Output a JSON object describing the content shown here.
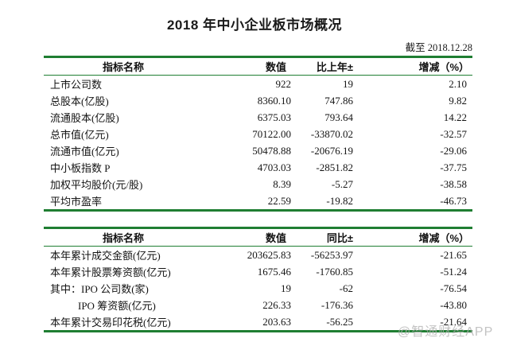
{
  "title": "2018 年中小企业板市场概况",
  "as_of": "截至 2018.12.28",
  "watermark": "@智通财经APP",
  "colors": {
    "border_green": "#1f7e32",
    "text": "#141414",
    "watermark": "#afafaf"
  },
  "table1": {
    "headers": [
      "指标名称",
      "数值",
      "比上年±",
      "增减（%）"
    ],
    "rows": [
      {
        "label": "上市公司数",
        "value": "922",
        "delta": "19",
        "pct": "2.10",
        "indent": false
      },
      {
        "label": "总股本(亿股)",
        "value": "8360.10",
        "delta": "747.86",
        "pct": "9.82",
        "indent": false
      },
      {
        "label": "流通股本(亿股)",
        "value": "6375.03",
        "delta": "793.64",
        "pct": "14.22",
        "indent": false
      },
      {
        "label": "总市值(亿元)",
        "value": "70122.00",
        "delta": "-33870.02",
        "pct": "-32.57",
        "indent": false
      },
      {
        "label": "流通市值(亿元)",
        "value": "50478.88",
        "delta": "-20676.19",
        "pct": "-29.06",
        "indent": false
      },
      {
        "label": "中小板指数 P",
        "value": "4703.03",
        "delta": "-2851.82",
        "pct": "-37.75",
        "indent": false
      },
      {
        "label": "加权平均股价(元/股)",
        "value": "8.39",
        "delta": "-5.27",
        "pct": "-38.58",
        "indent": false
      },
      {
        "label": "平均市盈率",
        "value": "22.59",
        "delta": "-19.82",
        "pct": "-46.73",
        "indent": false
      }
    ]
  },
  "table2": {
    "headers": [
      "指标名称",
      "数值",
      "同比±",
      "增减（%）"
    ],
    "rows": [
      {
        "label": "本年累计成交金额(亿元)",
        "value": "203625.83",
        "delta": "-56253.97",
        "pct": "-21.65",
        "indent": false
      },
      {
        "label": "本年累计股票筹资额(亿元)",
        "value": "1675.46",
        "delta": "-1760.85",
        "pct": "-51.24",
        "indent": false
      },
      {
        "label": "其中：IPO 公司数(家)",
        "value": "19",
        "delta": "-62",
        "pct": "-76.54",
        "indent": false
      },
      {
        "label": "IPO 筹资额(亿元)",
        "value": "226.33",
        "delta": "-176.36",
        "pct": "-43.80",
        "indent": true
      },
      {
        "label": "本年累计交易印花税(亿元)",
        "value": "203.63",
        "delta": "-56.25",
        "pct": "-21.64",
        "indent": false
      }
    ]
  }
}
